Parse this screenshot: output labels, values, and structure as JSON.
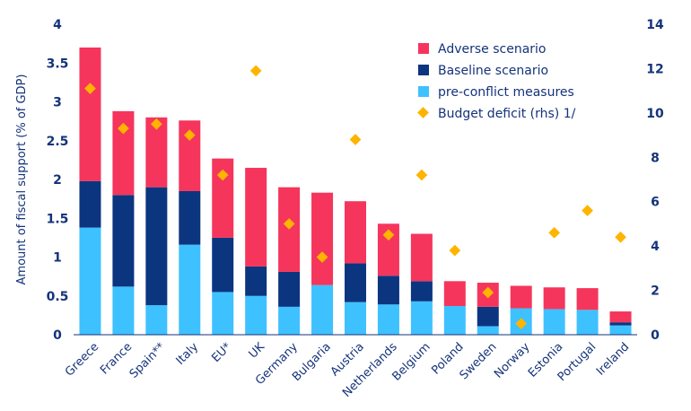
{
  "chart_data": {
    "type": "bar",
    "stacked": true,
    "ylabel": "Amount of fiscal support (% of GDP)",
    "ylim": [
      0,
      4
    ],
    "y_ticks": [
      "0",
      "0.5",
      "1",
      "1.5",
      "2",
      "2.5",
      "3",
      "3.5",
      "4"
    ],
    "y2lim": [
      0,
      14
    ],
    "y2_ticks": [
      "0",
      "2",
      "4",
      "6",
      "8",
      "10",
      "12",
      "14"
    ],
    "categories": [
      "Greece",
      "France",
      "Spain**",
      "Italy",
      "EU*",
      "UK",
      "Germany",
      "Bulgaria",
      "Austria",
      "Netherlands",
      "Belgium",
      "Poland",
      "Sweden",
      "Norway",
      "Estonia",
      "Portugal",
      "Ireland"
    ],
    "series": [
      {
        "name": "pre-conflict measures",
        "color": "#3ec1ff",
        "values": [
          1.38,
          0.62,
          0.38,
          1.16,
          0.55,
          0.5,
          0.36,
          0.64,
          0.42,
          0.39,
          0.43,
          0.37,
          0.11,
          0.34,
          0.33,
          0.32,
          0.12
        ]
      },
      {
        "name": "Baseline scenario",
        "color": "#0c3580",
        "values": [
          0.6,
          1.18,
          1.52,
          0.69,
          0.7,
          0.38,
          0.45,
          0.0,
          0.5,
          0.37,
          0.26,
          0.0,
          0.25,
          0.0,
          0.0,
          0.0,
          0.04
        ]
      },
      {
        "name": "Adverse scenario",
        "color": "#f5355c",
        "values": [
          1.72,
          1.08,
          0.9,
          0.91,
          1.02,
          1.27,
          1.09,
          1.19,
          0.8,
          0.67,
          0.61,
          0.32,
          0.31,
          0.29,
          0.28,
          0.28,
          0.14
        ]
      }
    ],
    "points": {
      "name": "Budget deficit (rhs) 1/",
      "color": "#ffb400",
      "values": [
        11.1,
        9.3,
        9.5,
        9.0,
        7.2,
        11.9,
        5.0,
        3.5,
        8.8,
        4.5,
        7.2,
        3.8,
        1.9,
        0.5,
        4.6,
        5.6,
        4.4
      ]
    },
    "legend": [
      "Adverse scenario",
      "Baseline scenario",
      "pre-conflict measures",
      "Budget deficit (rhs) 1/"
    ],
    "legend_position": "top-right"
  }
}
